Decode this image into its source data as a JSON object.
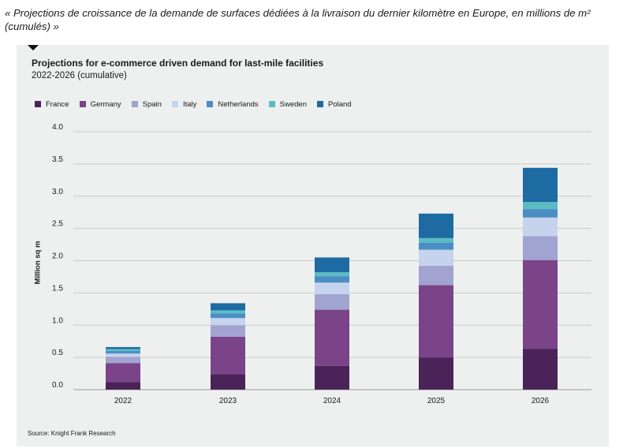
{
  "caption": "« Projections de croissance de la demande de surfaces dédiées à la livraison du dernier kilomètre en Europe, en millions de m² (cumulés) »",
  "source": "Source: Knight Frank Research",
  "chart_data": {
    "type": "bar",
    "stacked": true,
    "title": "Projections for e-commerce driven demand for last-mile facilities",
    "subtitle": "2022-2026 (cumulative)",
    "xlabel": "",
    "ylabel": "Million sq m",
    "ylim": [
      0,
      4.0
    ],
    "yticks": [
      "0.0",
      "0.5",
      "1.0",
      "1.5",
      "2.0",
      "2.5",
      "3.0",
      "3.5",
      "4.0"
    ],
    "grid": true,
    "legend_position": "top-left",
    "categories": [
      "2022",
      "2023",
      "2024",
      "2025",
      "2026"
    ],
    "series": [
      {
        "name": "France",
        "color": "#4a2359",
        "values": [
          0.12,
          0.24,
          0.37,
          0.5,
          0.63
        ]
      },
      {
        "name": "Germany",
        "color": "#7b4489",
        "values": [
          0.29,
          0.58,
          0.87,
          1.12,
          1.38
        ]
      },
      {
        "name": "Spain",
        "color": "#a1a3d0",
        "values": [
          0.1,
          0.18,
          0.24,
          0.3,
          0.37
        ]
      },
      {
        "name": "Italy",
        "color": "#c5d4ec",
        "values": [
          0.05,
          0.11,
          0.18,
          0.25,
          0.29
        ]
      },
      {
        "name": "Netherlands",
        "color": "#4a8ec4",
        "values": [
          0.04,
          0.07,
          0.1,
          0.11,
          0.13
        ]
      },
      {
        "name": "Sweden",
        "color": "#5bbcc4",
        "values": [
          0.03,
          0.05,
          0.06,
          0.07,
          0.11
        ]
      },
      {
        "name": "Poland",
        "color": "#1e6aa3",
        "values": [
          0.03,
          0.11,
          0.23,
          0.38,
          0.53
        ]
      }
    ]
  }
}
